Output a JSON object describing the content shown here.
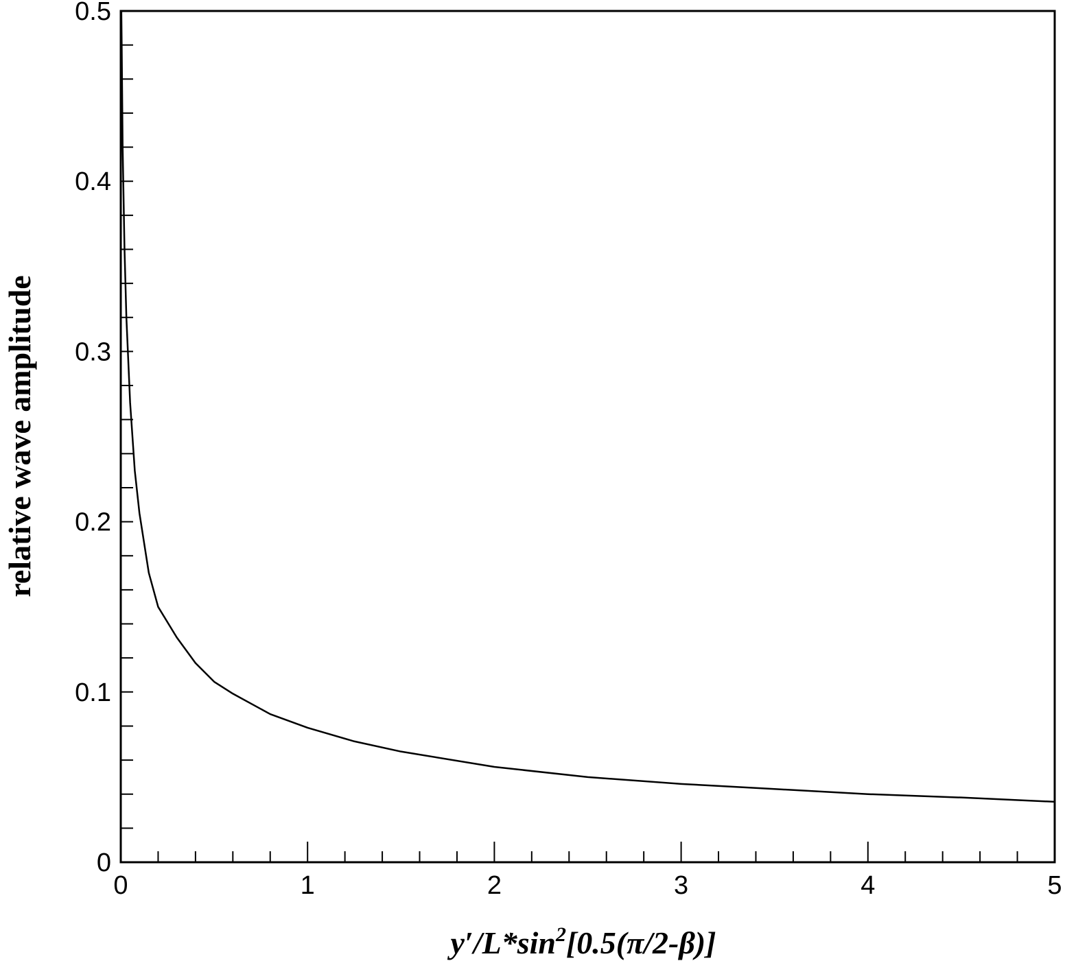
{
  "chart_data": {
    "type": "line",
    "xlabel": [
      "y′/L*sin",
      "2",
      "[0.5(π/2-β)]"
    ],
    "ylabel": "relative wave amplitude",
    "x": [
      0.003,
      0.005,
      0.01,
      0.02,
      0.03,
      0.05,
      0.075,
      0.1,
      0.15,
      0.2,
      0.3,
      0.4,
      0.5,
      0.6,
      0.8,
      1.0,
      1.25,
      1.5,
      2.0,
      2.5,
      3.0,
      3.5,
      4.0,
      4.5,
      5.0
    ],
    "series": [
      {
        "name": "relative wave amplitude",
        "color": "#000000",
        "values": [
          0.5,
          0.48,
          0.42,
          0.36,
          0.32,
          0.27,
          0.23,
          0.205,
          0.17,
          0.15,
          0.132,
          0.117,
          0.106,
          0.099,
          0.087,
          0.079,
          0.071,
          0.065,
          0.056,
          0.05,
          0.046,
          0.043,
          0.04,
          0.038,
          0.0355
        ]
      }
    ],
    "xlim": [
      0,
      5
    ],
    "ylim": [
      0,
      0.5
    ],
    "xticks": [
      0,
      1,
      2,
      3,
      4,
      5
    ],
    "yticks": [
      0,
      0.1,
      0.2,
      0.3,
      0.4,
      0.5
    ],
    "xminorticks": [
      0.2,
      0.4,
      0.6,
      0.8,
      1.2,
      1.4,
      1.6,
      1.8,
      2.2,
      2.4,
      2.6,
      2.8,
      3.2,
      3.4,
      3.6,
      3.8,
      4.2,
      4.4,
      4.6,
      4.8
    ],
    "yminorticks": [
      0.02,
      0.04,
      0.06,
      0.08,
      0.12,
      0.14,
      0.16,
      0.18,
      0.22,
      0.24,
      0.26,
      0.28,
      0.32,
      0.34,
      0.36,
      0.38,
      0.42,
      0.44,
      0.46,
      0.48
    ],
    "grid": false
  }
}
